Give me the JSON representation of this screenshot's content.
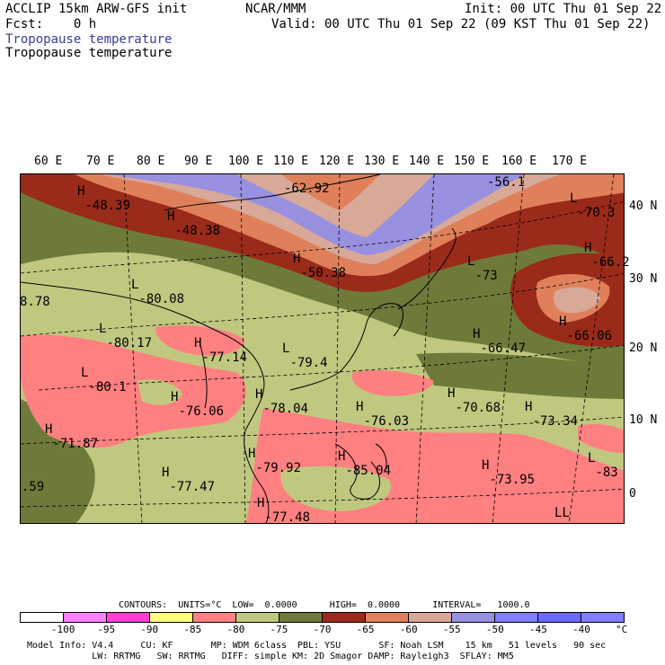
{
  "header": {
    "line1_left": "ACCLIP 15km ARW-GFS init",
    "line1_mid": "NCAR/MMM",
    "line1_right": "Init: 00 UTC Thu 01 Sep 22",
    "line2_left": "Fcst:    0 h",
    "line2_right": "Valid: 00 UTC Thu 01 Sep 22 (09 KST Thu 01 Sep 22)",
    "field1": "Tropopause temperature",
    "field2": "Tropopause temperature"
  },
  "axes": {
    "lon_labels": [
      "60 E",
      "70 E",
      "80 E",
      "90 E",
      "100 E",
      "110 E",
      "120 E",
      "130 E",
      "140 E",
      "150 E",
      "160 E",
      "170 E"
    ],
    "lat_labels": [
      "40 N",
      "30 N",
      "20 N",
      "10 N",
      "0"
    ]
  },
  "map_labels": [
    {
      "hl": "H",
      "value": "-48.39"
    },
    {
      "hl": "H",
      "value": "-48.38"
    },
    {
      "hl": "",
      "value": "-62.92"
    },
    {
      "hl": "",
      "value": "-56.1"
    },
    {
      "hl": "L",
      "value": "-70.3"
    },
    {
      "hl": "H",
      "value": "-66.2"
    },
    {
      "hl": "H",
      "value": "-50.38"
    },
    {
      "hl": "L",
      "value": "-73"
    },
    {
      "hl": "",
      "value": "8.78"
    },
    {
      "hl": "L",
      "value": "-80.08"
    },
    {
      "hl": "L",
      "value": "-80.17"
    },
    {
      "hl": "H",
      "value": "-77.14"
    },
    {
      "hl": "L",
      "value": "-79.4"
    },
    {
      "hl": "H",
      "value": "-66.47"
    },
    {
      "hl": "H",
      "value": "-66.06"
    },
    {
      "hl": "L",
      "value": "-80.1"
    },
    {
      "hl": "H",
      "value": "-76.06"
    },
    {
      "hl": "H",
      "value": "-78.04"
    },
    {
      "hl": "H",
      "value": "-76.03"
    },
    {
      "hl": "H",
      "value": "-70.68"
    },
    {
      "hl": "H",
      "value": "-73.34"
    },
    {
      "hl": "H",
      "value": "-71.87"
    },
    {
      "hl": "H",
      "value": "-79.92"
    },
    {
      "hl": "H",
      "value": "-85.04"
    },
    {
      "hl": "H",
      "value": "-73.95"
    },
    {
      "hl": "L",
      "value": "-83"
    },
    {
      "hl": "",
      "value": ".59"
    },
    {
      "hl": "H",
      "value": "-77.47"
    },
    {
      "hl": "H",
      "value": "-77.48"
    },
    {
      "hl": "L",
      "value": ""
    }
  ],
  "contours_line": "CONTOURS:  UNITS=°C  LOW=  0.0000      HIGH=  0.0000      INTERVAL=   1000.0",
  "legend": {
    "colors": [
      "#ffffff",
      "#ff80ff",
      "#ff40d0",
      "#ffff80",
      "#ff8080",
      "#c0c880",
      "#6e7a3a",
      "#9a2a1a",
      "#e0805a",
      "#d8a898",
      "#9890e0",
      "#7f7fff",
      "#6a6aff",
      "#7f7fff"
    ],
    "ticks": [
      "-100",
      "-95",
      "-90",
      "-85",
      "-80",
      "-75",
      "-70",
      "-65",
      "-60",
      "-55",
      "-50",
      "-45",
      "-40",
      "°C"
    ]
  },
  "footer": {
    "line1": "Model Info: V4.4     CU: KF       MP: WDM 6class  PBL: YSU       SF: Noah LSM    15 km   51 levels   90 sec",
    "line2": "            LW: RRTMG   SW: RRTMG   DIFF: simple KM: 2D Smagor DAMP: Rayleigh3  SFLAY: MM5"
  }
}
